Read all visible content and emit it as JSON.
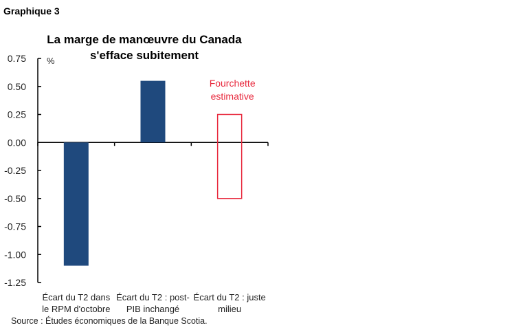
{
  "header": {
    "graph_label": "Graphique 3"
  },
  "chart_data": {
    "type": "bar",
    "title_lines": [
      "La marge de manœuvre du Canada",
      "s'effacе subitement"
    ],
    "ylabel": "%",
    "ylim": [
      -1.25,
      0.75
    ],
    "yticks": [
      0.75,
      0.5,
      0.25,
      0.0,
      -0.25,
      -0.5,
      -0.75,
      -1.0,
      -1.25
    ],
    "ytick_labels": [
      "0.75",
      "0.50",
      "0.25",
      "0.00",
      "-0.25",
      "-0.50",
      "-0.75",
      "-1.00",
      "-1.25"
    ],
    "categories": [
      [
        "Écart du T2 dans",
        "le RPM d'octobre"
      ],
      [
        "Écart du T2 : post-",
        "PIB inchangé"
      ],
      [
        "Écart du T2 : juste",
        "milieu"
      ]
    ],
    "values": [
      -1.1,
      0.55,
      null
    ],
    "range": {
      "category_index": 2,
      "low": -0.5,
      "high": 0.25,
      "label_lines": [
        "Fourchette",
        "estimative"
      ]
    },
    "colors": {
      "bar": "#1f497d",
      "range": "#e8283c"
    },
    "grid": false
  },
  "source": "Source : Études économiques de la Banque Scotia."
}
